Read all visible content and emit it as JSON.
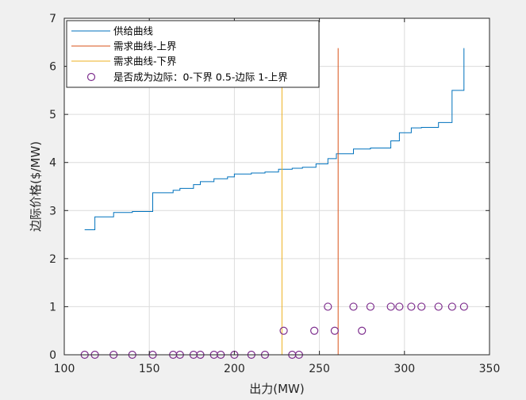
{
  "chart_data": {
    "type": "line",
    "xlabel": "出力(MW)",
    "ylabel": "边际价格($/MW)",
    "xlim": [
      100,
      350
    ],
    "ylim": [
      0,
      7
    ],
    "xticks": [
      100,
      150,
      200,
      250,
      300,
      350
    ],
    "yticks": [
      0,
      1,
      2,
      3,
      4,
      5,
      6,
      7
    ],
    "grid": true,
    "legend_position": "top-left",
    "colors": {
      "supply": "#0072BD",
      "demand_upper": "#D95319",
      "demand_lower": "#EDB120",
      "marker": "#7E2F8E",
      "grid": "#dcdcdc",
      "axes_bg": "#ffffff",
      "figure_bg": "#f0f0f0"
    },
    "series": [
      {
        "name": "供给曲线",
        "kind": "step",
        "x": [
          112,
          118,
          118,
          129,
          129,
          140,
          140,
          152,
          152,
          164,
          164,
          168,
          168,
          176,
          176,
          180,
          180,
          188,
          188,
          196,
          196,
          200,
          200,
          210,
          210,
          218,
          218,
          226,
          226,
          234,
          234,
          240,
          240,
          248,
          248,
          255,
          255,
          260,
          260,
          270,
          270,
          280,
          280,
          292,
          292,
          297,
          297,
          304,
          304,
          310,
          310,
          320,
          320,
          328,
          328,
          335,
          335
        ],
        "y": [
          2.6,
          2.6,
          2.87,
          2.87,
          2.96,
          2.96,
          2.98,
          2.98,
          3.37,
          3.37,
          3.42,
          3.42,
          3.46,
          3.46,
          3.54,
          3.54,
          3.6,
          3.6,
          3.66,
          3.66,
          3.7,
          3.7,
          3.76,
          3.76,
          3.78,
          3.78,
          3.8,
          3.8,
          3.86,
          3.86,
          3.88,
          3.88,
          3.9,
          3.9,
          3.97,
          3.97,
          4.08,
          4.08,
          4.18,
          4.18,
          4.28,
          4.28,
          4.3,
          4.3,
          4.45,
          4.45,
          4.62,
          4.62,
          4.72,
          4.72,
          4.73,
          4.73,
          4.83,
          4.83,
          5.5,
          5.5,
          6.38
        ]
      },
      {
        "name": "需求曲线-上界",
        "kind": "vline",
        "x": [
          261,
          261
        ],
        "y": [
          0,
          6.38
        ]
      },
      {
        "name": "需求曲线-下界",
        "kind": "vline",
        "x": [
          228,
          228
        ],
        "y": [
          0,
          6.38
        ]
      },
      {
        "name": "是否成为边际：0-下界 0.5-边际 1-上界",
        "kind": "scatter",
        "x": [
          112,
          118,
          129,
          140,
          152,
          164,
          168,
          176,
          180,
          188,
          192,
          200,
          210,
          218,
          229,
          234,
          238,
          247,
          255,
          259,
          270,
          275,
          280,
          292,
          297,
          304,
          310,
          320,
          328,
          335
        ],
        "y": [
          0,
          0,
          0,
          0,
          0,
          0,
          0,
          0,
          0,
          0,
          0,
          0,
          0,
          0,
          0.5,
          0,
          0,
          0.5,
          1,
          0.5,
          1,
          0.5,
          1,
          1,
          1,
          1,
          1,
          1,
          1,
          1
        ]
      }
    ]
  }
}
